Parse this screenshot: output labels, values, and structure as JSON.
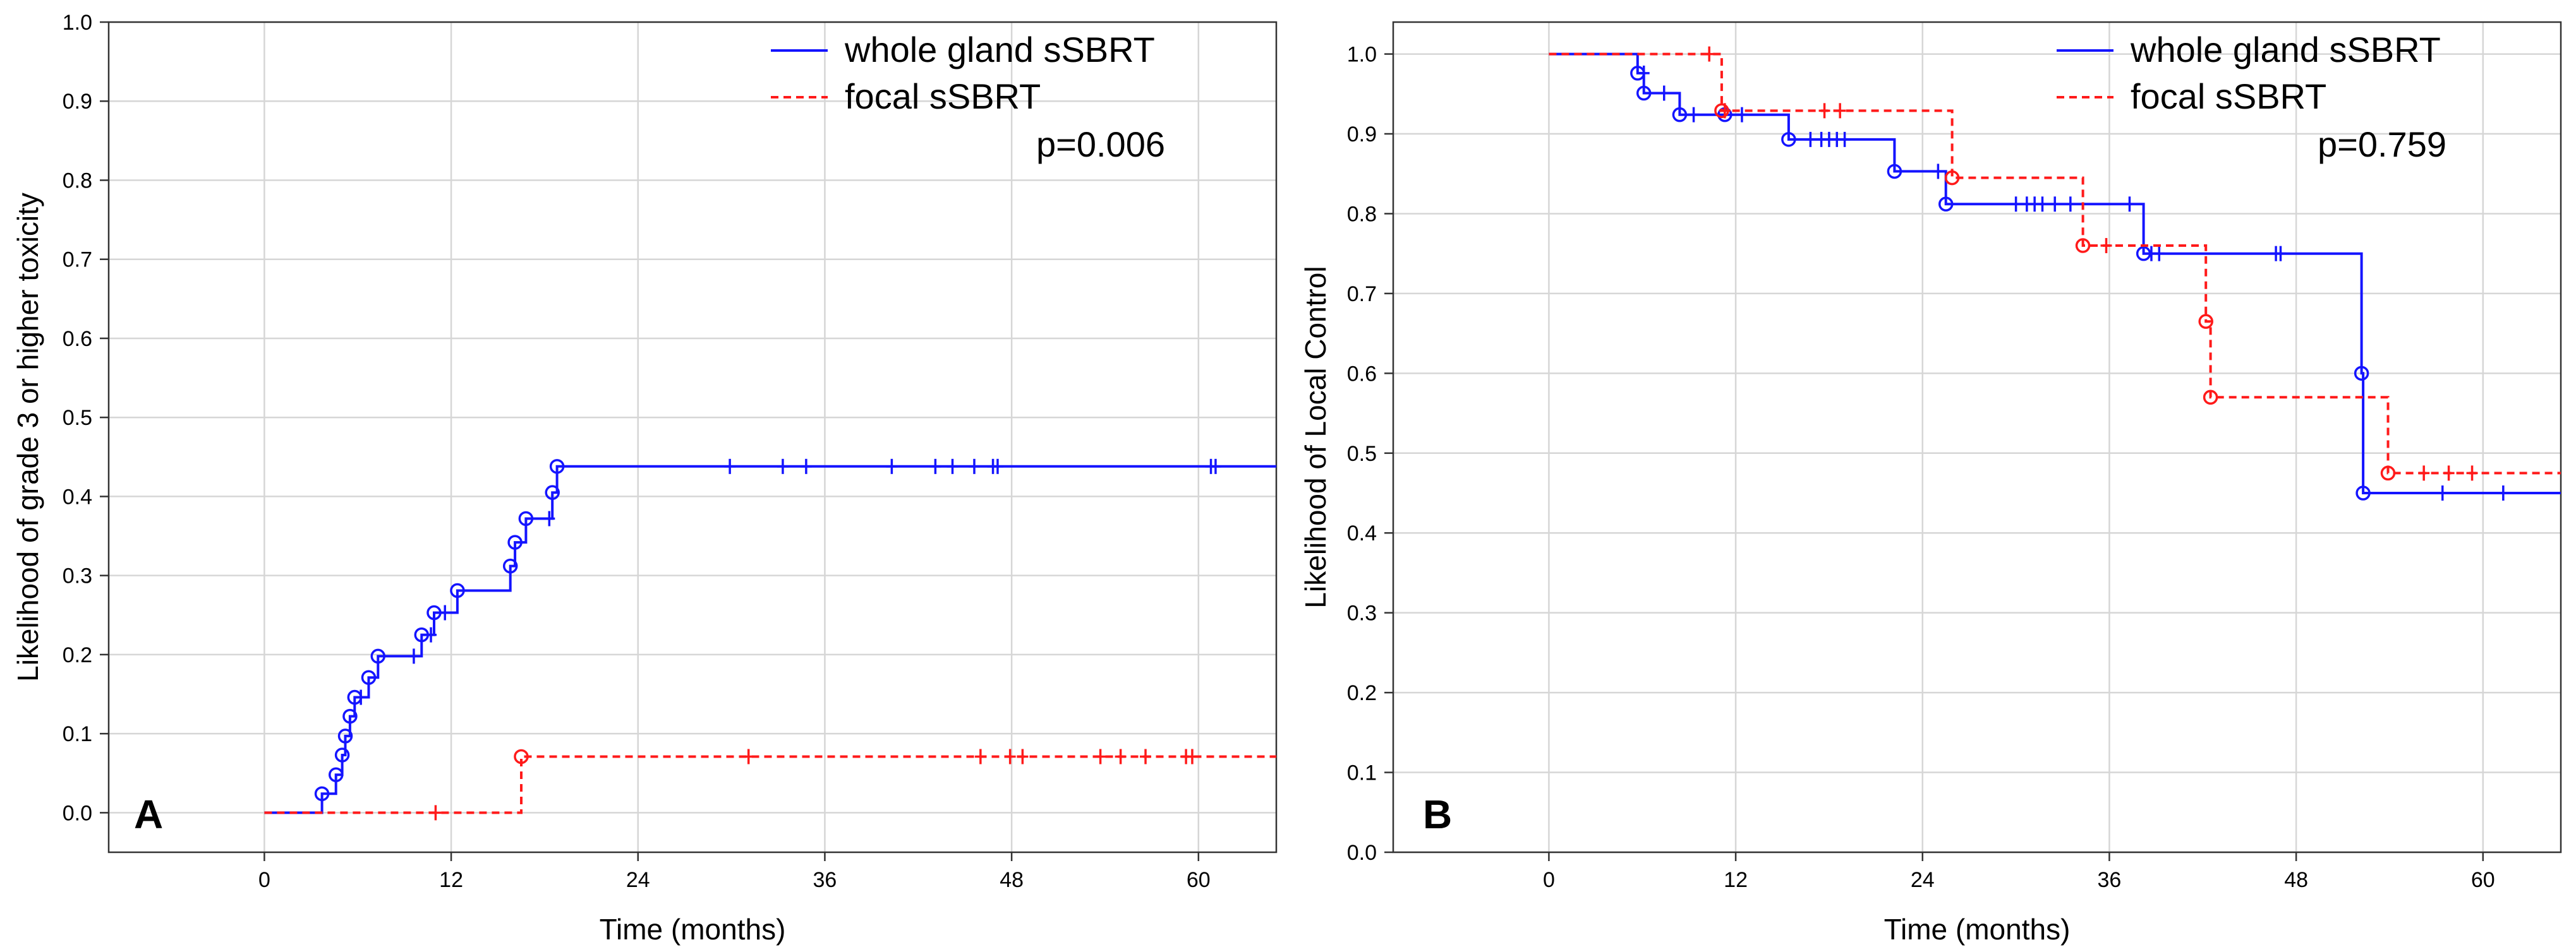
{
  "chart_data": [
    {
      "type": "line",
      "panel_label": "A",
      "xlabel": "Time (months)",
      "ylabel": "Likelihood of grade 3 or higher toxicity",
      "xlim": [
        -10,
        65
      ],
      "ylim": [
        -0.05,
        1.0
      ],
      "xticks": [
        0,
        12,
        24,
        36,
        48,
        60
      ],
      "yticks": [
        0.0,
        0.1,
        0.2,
        0.3,
        0.4,
        0.5,
        0.6,
        0.7,
        0.8,
        0.9,
        1.0
      ],
      "xtick_labels": [
        "0",
        "12",
        "24",
        "36",
        "48",
        "60"
      ],
      "ytick_labels": [
        "0.0",
        "0.1",
        "0.2",
        "0.3",
        "0.4",
        "0.5",
        "0.6",
        "0.7",
        "0.8",
        "0.9",
        "1.0"
      ],
      "grid": true,
      "legend_position": "top-right",
      "annotation": "p=0.006",
      "series": [
        {
          "name": "whole gland sSBRT",
          "color": "#1414ff",
          "dash": "solid",
          "steps": [
            [
              0,
              0
            ],
            [
              3.7,
              0
            ],
            [
              3.7,
              0.024
            ],
            [
              4.6,
              0.024
            ],
            [
              4.6,
              0.048
            ],
            [
              5.0,
              0.048
            ],
            [
              5.0,
              0.073
            ],
            [
              5.2,
              0.073
            ],
            [
              5.2,
              0.097
            ],
            [
              5.5,
              0.097
            ],
            [
              5.5,
              0.122
            ],
            [
              5.8,
              0.122
            ],
            [
              5.8,
              0.146
            ],
            [
              6.7,
              0.146
            ],
            [
              6.7,
              0.171
            ],
            [
              7.3,
              0.171
            ],
            [
              7.3,
              0.198
            ],
            [
              10.1,
              0.198
            ],
            [
              10.1,
              0.225
            ],
            [
              10.9,
              0.225
            ],
            [
              10.9,
              0.253
            ],
            [
              12.4,
              0.253
            ],
            [
              12.4,
              0.281
            ],
            [
              15.8,
              0.281
            ],
            [
              15.8,
              0.312
            ],
            [
              16.1,
              0.312
            ],
            [
              16.1,
              0.342
            ],
            [
              16.8,
              0.342
            ],
            [
              16.8,
              0.372
            ],
            [
              18.5,
              0.372
            ],
            [
              18.5,
              0.405
            ],
            [
              18.8,
              0.405
            ],
            [
              18.8,
              0.438
            ],
            [
              65,
              0.438
            ]
          ],
          "events": [
            [
              3.7,
              0.024
            ],
            [
              4.6,
              0.048
            ],
            [
              5.0,
              0.073
            ],
            [
              5.2,
              0.097
            ],
            [
              5.5,
              0.122
            ],
            [
              5.8,
              0.146
            ],
            [
              6.7,
              0.171
            ],
            [
              7.3,
              0.198
            ],
            [
              10.1,
              0.225
            ],
            [
              10.9,
              0.253
            ],
            [
              12.4,
              0.281
            ],
            [
              15.8,
              0.312
            ],
            [
              16.1,
              0.342
            ],
            [
              16.8,
              0.372
            ],
            [
              18.5,
              0.405
            ],
            [
              18.8,
              0.438
            ]
          ],
          "censored": [
            [
              6.2,
              0.146
            ],
            [
              9.6,
              0.198
            ],
            [
              10.7,
              0.225
            ],
            [
              11.6,
              0.253
            ],
            [
              18.3,
              0.372
            ],
            [
              29.9,
              0.438
            ],
            [
              33.3,
              0.438
            ],
            [
              34.8,
              0.438
            ],
            [
              40.3,
              0.438
            ],
            [
              43.1,
              0.438
            ],
            [
              44.2,
              0.438
            ],
            [
              45.6,
              0.438
            ],
            [
              46.8,
              0.438
            ],
            [
              47.1,
              0.438
            ],
            [
              60.8,
              0.438
            ],
            [
              61.1,
              0.438
            ]
          ]
        },
        {
          "name": "focal sSBRT",
          "color": "#ff1a1a",
          "dash": "dashed",
          "steps": [
            [
              0,
              0
            ],
            [
              16.5,
              0
            ],
            [
              16.5,
              0.071
            ],
            [
              65,
              0.071
            ]
          ],
          "events": [
            [
              16.5,
              0.071
            ]
          ],
          "censored": [
            [
              11.0,
              0
            ],
            [
              31.1,
              0.071
            ],
            [
              46.0,
              0.071
            ],
            [
              47.9,
              0.071
            ],
            [
              48.7,
              0.071
            ],
            [
              53.7,
              0.071
            ],
            [
              55.0,
              0.071
            ],
            [
              56.6,
              0.071
            ],
            [
              59.2,
              0.071
            ],
            [
              59.6,
              0.071
            ]
          ]
        }
      ]
    },
    {
      "type": "line",
      "panel_label": "B",
      "xlabel": "Time (months)",
      "ylabel": "Likelihood of Local Control",
      "xlim": [
        -10,
        65
      ],
      "ylim": [
        0.0,
        1.04
      ],
      "xticks": [
        0,
        12,
        24,
        36,
        48,
        60
      ],
      "yticks": [
        0.0,
        0.1,
        0.2,
        0.3,
        0.4,
        0.5,
        0.6,
        0.7,
        0.8,
        0.9,
        1.0
      ],
      "xtick_labels": [
        "0",
        "12",
        "24",
        "36",
        "48",
        "60"
      ],
      "ytick_labels": [
        "0.0",
        "0.1",
        "0.2",
        "0.3",
        "0.4",
        "0.5",
        "0.6",
        "0.7",
        "0.8",
        "0.9",
        "1.0"
      ],
      "grid": true,
      "legend_position": "top-right",
      "annotation": "p=0.759",
      "series": [
        {
          "name": "whole gland sSBRT",
          "color": "#1414ff",
          "dash": "solid",
          "steps": [
            [
              0,
              1.0
            ],
            [
              5.7,
              1.0
            ],
            [
              5.7,
              0.976
            ],
            [
              6.1,
              0.976
            ],
            [
              6.1,
              0.951
            ],
            [
              8.4,
              0.951
            ],
            [
              8.4,
              0.924
            ],
            [
              15.4,
              0.924
            ],
            [
              15.4,
              0.893
            ],
            [
              22.2,
              0.893
            ],
            [
              22.2,
              0.853
            ],
            [
              25.5,
              0.853
            ],
            [
              25.5,
              0.812
            ],
            [
              38.2,
              0.812
            ],
            [
              38.2,
              0.75
            ],
            [
              52.2,
              0.75
            ],
            [
              52.2,
              0.6
            ],
            [
              52.3,
              0.6
            ],
            [
              52.3,
              0.45
            ],
            [
              65,
              0.45
            ]
          ],
          "events": [
            [
              5.7,
              0.976
            ],
            [
              6.1,
              0.951
            ],
            [
              8.4,
              0.924
            ],
            [
              11.3,
              0.924
            ],
            [
              15.4,
              0.893
            ],
            [
              22.2,
              0.853
            ],
            [
              25.5,
              0.812
            ],
            [
              38.2,
              0.75
            ],
            [
              52.2,
              0.6
            ],
            [
              52.3,
              0.45
            ]
          ],
          "censored": [
            [
              6.1,
              0.976
            ],
            [
              7.4,
              0.951
            ],
            [
              9.3,
              0.924
            ],
            [
              12.4,
              0.924
            ],
            [
              16.8,
              0.893
            ],
            [
              17.5,
              0.893
            ],
            [
              18.0,
              0.893
            ],
            [
              18.5,
              0.893
            ],
            [
              19.0,
              0.893
            ],
            [
              25.0,
              0.853
            ],
            [
              30.0,
              0.812
            ],
            [
              30.7,
              0.812
            ],
            [
              31.2,
              0.812
            ],
            [
              31.7,
              0.812
            ],
            [
              32.5,
              0.812
            ],
            [
              33.5,
              0.812
            ],
            [
              37.3,
              0.812
            ],
            [
              38.7,
              0.75
            ],
            [
              39.2,
              0.75
            ],
            [
              46.7,
              0.75
            ],
            [
              47.0,
              0.75
            ],
            [
              57.4,
              0.45
            ],
            [
              61.3,
              0.45
            ]
          ]
        },
        {
          "name": "focal sSBRT",
          "color": "#ff1a1a",
          "dash": "dashed",
          "steps": [
            [
              0,
              1.0
            ],
            [
              11.1,
              1.0
            ],
            [
              11.1,
              0.929
            ],
            [
              25.9,
              0.929
            ],
            [
              25.9,
              0.845
            ],
            [
              34.3,
              0.845
            ],
            [
              34.3,
              0.76
            ],
            [
              42.2,
              0.76
            ],
            [
              42.2,
              0.665
            ],
            [
              42.5,
              0.665
            ],
            [
              42.5,
              0.57
            ],
            [
              53.9,
              0.57
            ],
            [
              53.9,
              0.475
            ],
            [
              65,
              0.475
            ]
          ],
          "events": [
            [
              11.1,
              0.929
            ],
            [
              25.9,
              0.845
            ],
            [
              34.3,
              0.76
            ],
            [
              42.2,
              0.665
            ],
            [
              42.5,
              0.57
            ],
            [
              53.9,
              0.475
            ]
          ],
          "censored": [
            [
              10.3,
              1.0
            ],
            [
              11.3,
              0.929
            ],
            [
              17.7,
              0.929
            ],
            [
              18.7,
              0.929
            ],
            [
              35.8,
              0.76
            ],
            [
              56.2,
              0.475
            ],
            [
              57.8,
              0.475
            ],
            [
              59.3,
              0.475
            ]
          ]
        }
      ]
    }
  ]
}
